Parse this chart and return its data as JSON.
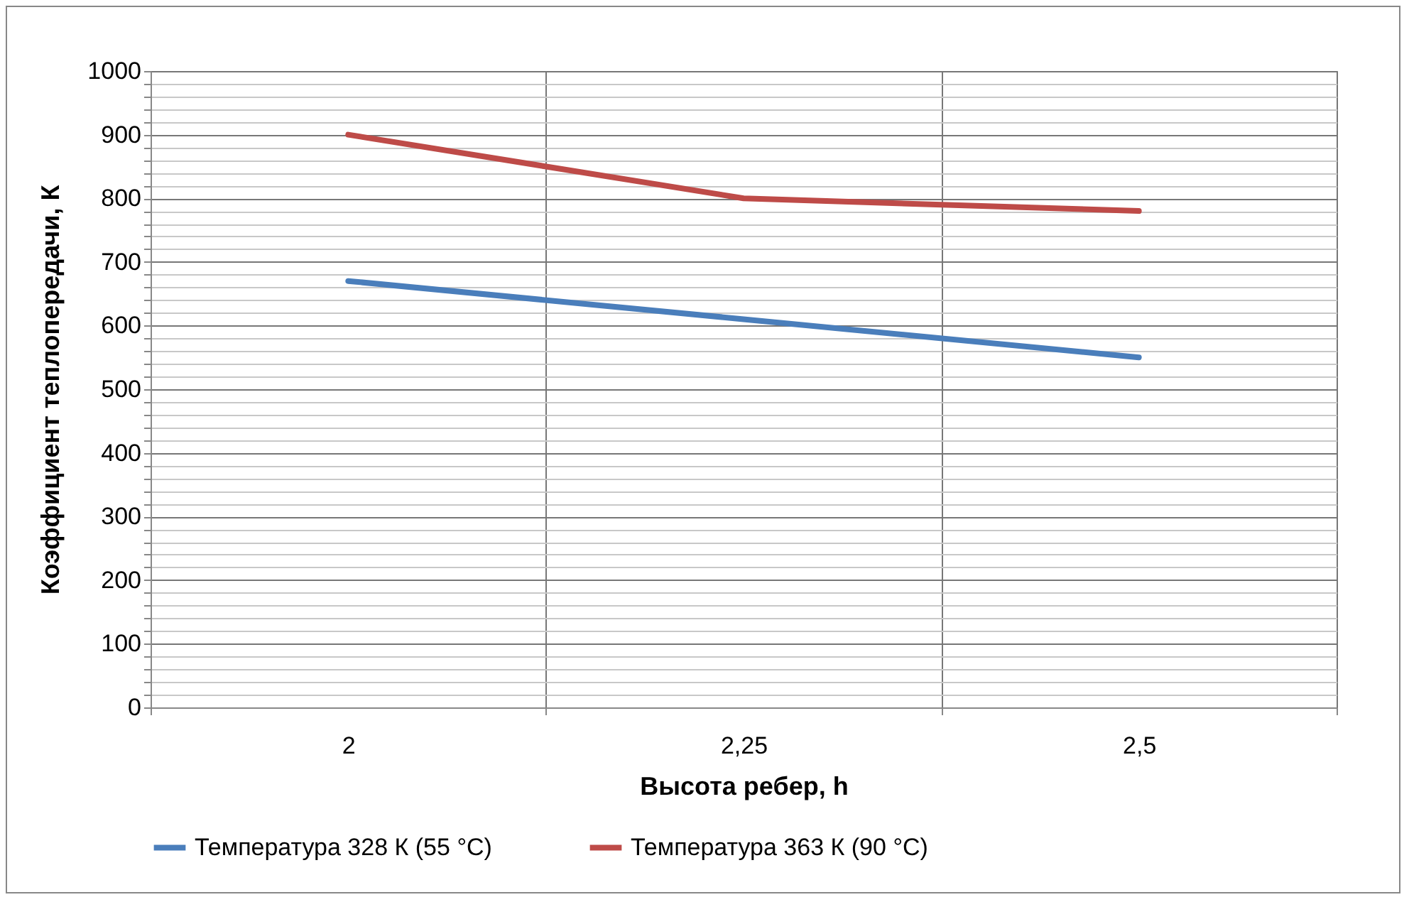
{
  "chart_data": {
    "type": "line",
    "xlabel": "Высота ребер, h",
    "ylabel": "Коэффициент теплопередачи, К",
    "categories": [
      "2",
      "2,25",
      "2,5"
    ],
    "series": [
      {
        "name": "Температура 328 К (55 °С)",
        "color": "#4a7ebb",
        "values": [
          670,
          610,
          550
        ]
      },
      {
        "name": "Температура 363 К (90 °С)",
        "color": "#be4b48",
        "values": [
          900,
          800,
          780
        ]
      }
    ],
    "ylim": [
      0,
      1000
    ],
    "yticks": [
      0,
      {
        "value": 20,
        "label": null
      },
      {
        "value": 40,
        "label": null
      },
      {
        "value": 60,
        "label": null
      },
      {
        "value": 80,
        "label": null
      },
      100,
      {
        "value": 120,
        "label": null
      },
      {
        "value": 140,
        "label": null
      },
      {
        "value": 160,
        "label": null
      },
      {
        "value": 180,
        "label": null
      },
      200,
      {
        "value": 220,
        "label": null
      },
      {
        "value": 240,
        "label": null
      },
      {
        "value": 260,
        "label": null
      },
      {
        "value": 280,
        "label": null
      },
      300,
      {
        "value": 320,
        "label": null
      },
      {
        "value": 340,
        "label": null
      },
      {
        "value": 360,
        "label": null
      },
      {
        "value": 380,
        "label": null
      },
      400,
      {
        "value": 420,
        "label": null
      },
      {
        "value": 440,
        "label": null
      },
      {
        "value": 460,
        "label": null
      },
      {
        "value": 480,
        "label": null
      },
      500,
      {
        "value": 520,
        "label": null
      },
      {
        "value": 540,
        "label": null
      },
      {
        "value": 560,
        "label": null
      },
      {
        "value": 580,
        "label": null
      },
      600,
      {
        "value": 620,
        "label": null
      },
      {
        "value": 640,
        "label": null
      },
      {
        "value": 660,
        "label": null
      },
      {
        "value": 680,
        "label": null
      },
      700,
      {
        "value": 720,
        "label": null
      },
      {
        "value": 740,
        "label": null
      },
      {
        "value": 760,
        "label": null
      },
      {
        "value": 780,
        "label": null
      },
      800,
      {
        "value": 820,
        "label": null
      },
      {
        "value": 840,
        "label": null
      },
      {
        "value": 860,
        "label": null
      },
      {
        "value": 880,
        "label": null
      },
      900,
      {
        "value": 920,
        "label": null
      },
      {
        "value": 940,
        "label": null
      },
      {
        "value": 960,
        "label": null
      },
      {
        "value": 980,
        "label": null
      },
      1000
    ],
    "grid": true,
    "legend": "bottom",
    "marker": "none",
    "line_style": "solid"
  }
}
